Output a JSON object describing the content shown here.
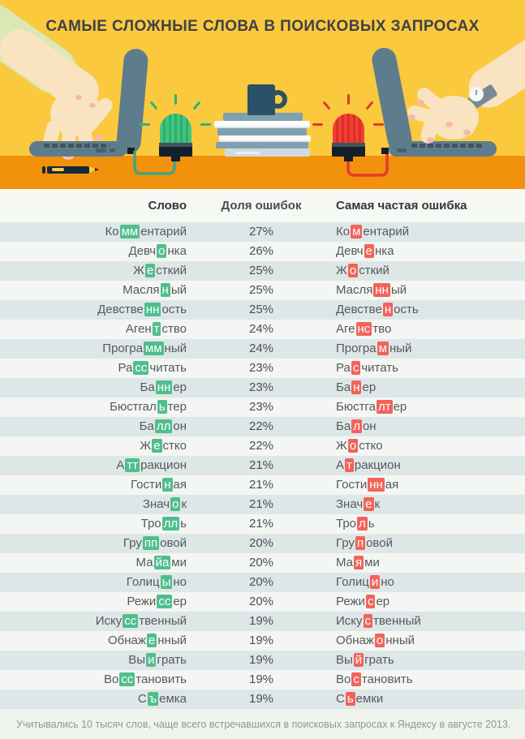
{
  "title": "САМЫЕ СЛОЖНЫЕ СЛОВА В ПОИСКОВЫХ ЗАПРОСАХ",
  "table": {
    "headers": [
      "Слово",
      "Доля ошибок",
      "Самая частая ошибка"
    ],
    "rows": [
      {
        "word": "Ко|мм|ентарий",
        "share": "27%",
        "error": "Ко|м|ентарий"
      },
      {
        "word": "Девч|о|нка",
        "share": "26%",
        "error": "Девч|е|нка"
      },
      {
        "word": "Ж|е|сткий",
        "share": "25%",
        "error": "Ж|о|сткий"
      },
      {
        "word": "Масля|н|ый",
        "share": "25%",
        "error": "Масля|нн|ый"
      },
      {
        "word": "Девстве|нн|ость",
        "share": "25%",
        "error": "Девстве|н|ость"
      },
      {
        "word": "Аген|т|ство",
        "share": "24%",
        "error": "Аге|нс|тво"
      },
      {
        "word": "Програ|мм|ный",
        "share": "24%",
        "error": "Програ|м|ный"
      },
      {
        "word": "Ра|сс|читать",
        "share": "23%",
        "error": "Ра|с|читать"
      },
      {
        "word": "Ба|нн|ер",
        "share": "23%",
        "error": "Ба|н|ер"
      },
      {
        "word": "Бюстгал|ь|тер",
        "share": "23%",
        "error": "Бюстга|лт|ер"
      },
      {
        "word": "Ба|лл|он",
        "share": "22%",
        "error": "Ба|л|он"
      },
      {
        "word": "Ж|е|стко",
        "share": "22%",
        "error": "Ж|о|стко"
      },
      {
        "word": "А|тт|ракцион",
        "share": "21%",
        "error": "А|т|ракцион"
      },
      {
        "word": "Гости|н|ая",
        "share": "21%",
        "error": "Гости|нн|ая"
      },
      {
        "word": "Знач|о|к",
        "share": "21%",
        "error": "Знач|е|к"
      },
      {
        "word": "Тро|лл|ь",
        "share": "21%",
        "error": "Тро|л|ь"
      },
      {
        "word": "Гру|пп|овой",
        "share": "20%",
        "error": "Гру|п|овой"
      },
      {
        "word": "Ма|йа|ми",
        "share": "20%",
        "error": "Ма|я|ми"
      },
      {
        "word": "Голиц|ы|но",
        "share": "20%",
        "error": "Голиц|и|но"
      },
      {
        "word": "Режи|сс|ер",
        "share": "20%",
        "error": "Режи|с|ер"
      },
      {
        "word": "Иску|сс|твенный",
        "share": "19%",
        "error": "Иску|с|твенный"
      },
      {
        "word": "Обнаж|е|нный",
        "share": "19%",
        "error": "Обнаж|о|нный"
      },
      {
        "word": "Вы|и|грать",
        "share": "19%",
        "error": "Вы|й|грать"
      },
      {
        "word": "Во|сс|тановить",
        "share": "19%",
        "error": "Во|с|тановить"
      },
      {
        "word": "С|ъ|емка",
        "share": "19%",
        "error": "С|ь|емки"
      }
    ]
  },
  "footer_note": "Учитывались 10 тысяч слов, чаще всего встречавшихся в поисковых запросах к Яндексу в августе 2013.",
  "chart_data": {
    "type": "table",
    "title": "САМЫЕ СЛОЖНЫЕ СЛОВА В ПОИСКОВЫХ ЗАПРОСАХ",
    "columns": [
      "Слово",
      "Доля ошибок",
      "Самая частая ошибка"
    ],
    "rows": [
      [
        "Комментарий",
        "27%",
        "Коментарий"
      ],
      [
        "Девчонка",
        "26%",
        "Девченка"
      ],
      [
        "Жесткий",
        "25%",
        "Жосткий"
      ],
      [
        "Масляный",
        "25%",
        "Маслянный"
      ],
      [
        "Девственность",
        "25%",
        "Девственость"
      ],
      [
        "Агентство",
        "24%",
        "Агенство"
      ],
      [
        "Программный",
        "24%",
        "Програмный"
      ],
      [
        "Рассчитать",
        "23%",
        "Расчитать"
      ],
      [
        "Баннер",
        "23%",
        "Банер"
      ],
      [
        "Бюстгальтер",
        "23%",
        "Бюстгалтер"
      ],
      [
        "Баллон",
        "22%",
        "Балон"
      ],
      [
        "Жестко",
        "22%",
        "Жостко"
      ],
      [
        "Аттракцион",
        "21%",
        "Атракцион"
      ],
      [
        "Гостиная",
        "21%",
        "Гостинная"
      ],
      [
        "Значок",
        "21%",
        "Значек"
      ],
      [
        "Тролль",
        "21%",
        "Троль"
      ],
      [
        "Групповой",
        "20%",
        "Груповой"
      ],
      [
        "Майами",
        "20%",
        "Маями"
      ],
      [
        "Голицыно",
        "20%",
        "Голицино"
      ],
      [
        "Режиссер",
        "20%",
        "Режисер"
      ],
      [
        "Искусственный",
        "19%",
        "Искуственный"
      ],
      [
        "Обнаженный",
        "19%",
        "Обнажонный"
      ],
      [
        "Выиграть",
        "19%",
        "Выйграть"
      ],
      [
        "Восстановить",
        "19%",
        "Востановить"
      ],
      [
        "Съемка",
        "19%",
        "Сьемки"
      ]
    ],
    "note": "Учитывались 10 тысяч слов, чаще всего встречавшихся в поисковых запросах к Яндексу в августе 2013."
  },
  "colors": {
    "yellow_bg": "#FBC93E",
    "desk_orange": "#F2910C",
    "title_text": "#3E4247",
    "slate": "#5E7D8C",
    "dark_navy": "#13202C",
    "green_lamp": "#41C580",
    "green_lamp_dark": "#2FAE6C",
    "red_lamp": "#F23E33",
    "red_lamp_dark": "#D63028",
    "glow_green": "#2AB573",
    "glow_red": "#E3372C",
    "cable_green": "#3FA57E",
    "cable_red": "#E8392E",
    "skin": "#F9E3C1",
    "sleeve_green": "#DBE7B4",
    "nail_pink": "#F4B9AD",
    "watch_gray": "#7A8A94",
    "book_white": "#FDFDFD",
    "book_pale": "#CEDBE1",
    "mug_navy": "#2A5168",
    "row_dark": "#DEE7E8",
    "row_light": "#F3F6F2",
    "table_bg": "#F6F8F4",
    "header_text": "#33363B",
    "word_text": "#56585D",
    "share_text": "#4B4D52",
    "green_hl": "#50BE8C",
    "red_hl": "#F2635A",
    "footer_bg": "#F0F4EE",
    "footer_text": "#8F9695"
  }
}
